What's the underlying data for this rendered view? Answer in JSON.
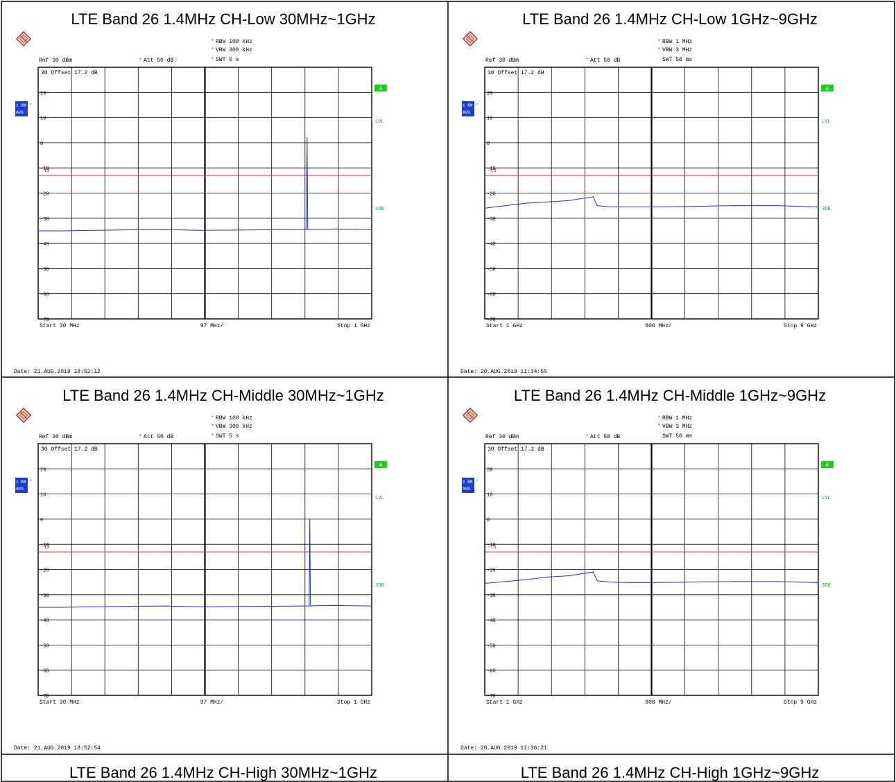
{
  "panels": [
    {
      "title": "LTE Band 26 1.4MHz CH-Low 30MHz~1GHz",
      "settings": {
        "rbw": "RBW 100 kHz",
        "vbw": "VBW 300 kHz",
        "swt": "SWT 5 s",
        "ref": "Ref  30 dBm",
        "att": "Att  50 dB",
        "offset": "30 Offset  17.2 dB"
      },
      "trace_label": [
        "1 RM",
        "AVG"
      ],
      "side_labels": [
        "A",
        "LVL",
        "3DB"
      ],
      "limit_label": "-13",
      "date": "Date: 21.AUG.2019  18:52:12",
      "footer": {
        "start": "Start  30 MHz",
        "span": "97 MHz/",
        "stop": "Stop  1 GHz"
      }
    },
    {
      "title": "LTE Band 26 1.4MHz CH-Low 1GHz~9GHz",
      "settings": {
        "rbw": "RBW 1 MHz",
        "vbw": "VBW 3 MHz",
        "swt": "SWT 50 ms",
        "ref": "Ref  30 dBm",
        "att": "Att  50 dB",
        "offset": "30 Offset  17.2 dB"
      },
      "trace_label": [
        "1 RM",
        "AVG"
      ],
      "side_labels": [
        "A",
        "LVL",
        "3DB"
      ],
      "limit_label": "-13",
      "date": "Date: 20.AUG.2019  11:34:55",
      "footer": {
        "start": "Start  1 GHz",
        "span": "800 MHz/",
        "stop": "Stop  9 GHz"
      }
    },
    {
      "title": "LTE Band 26 1.4MHz CH-Middle 30MHz~1GHz",
      "settings": {
        "rbw": "RBW 100 kHz",
        "vbw": "VBW 300 kHz",
        "swt": "SWT 5 s",
        "ref": "Ref  30 dBm",
        "att": "Att  50 dB",
        "offset": "30 Offset  17.2 dB"
      },
      "trace_label": [
        "1 RM",
        "AVG"
      ],
      "side_labels": [
        "A",
        "LVL",
        "3DB"
      ],
      "limit_label": "-13",
      "date": "Date: 21.AUG.2019  18:52:54",
      "footer": {
        "start": "Start  30 MHz",
        "span": "97 MHz/",
        "stop": "Stop  1 GHz"
      }
    },
    {
      "title": "LTE Band 26 1.4MHz CH-Middle 1GHz~9GHz",
      "settings": {
        "rbw": "RBW 1 MHz",
        "vbw": "VBW 3 MHz",
        "swt": "SWT 50 ms",
        "ref": "Ref  30 dBm",
        "att": "Att  50 dB",
        "offset": "30 Offset  17.2 dB"
      },
      "trace_label": [
        "1 RM",
        "AVG"
      ],
      "side_labels": [
        "A",
        "LVL",
        "3DB"
      ],
      "limit_label": "-13",
      "date": "Date: 20.AUG.2019  11:36:21",
      "footer": {
        "start": "Start  1 GHz",
        "span": "800 MHz/",
        "stop": "Stop  9 GHz"
      }
    },
    {
      "title": "LTE Band 26 1.4MHz CH-High 30MHz~1GHz"
    },
    {
      "title": "LTE Band 26 1.4MHz CH-High 1GHz~9GHz"
    }
  ],
  "colors": {
    "trace": "#1f2fd6",
    "limit": "#e0352b",
    "grid": "#000000",
    "badge_blue": "#1a3fd0",
    "badge_green": "#22cc22"
  },
  "chart_data": [
    {
      "type": "line",
      "title": "LTE Band 26 1.4MHz CH-Low 30MHz~1GHz",
      "x_unit": "MHz",
      "xlim": [
        30,
        1000
      ],
      "ylim": [
        -70,
        30
      ],
      "y_ticks": [
        20,
        10,
        0,
        -10,
        -20,
        -30,
        -40,
        -50,
        -60,
        -70
      ],
      "limit_line": -13,
      "series": [
        {
          "x": [
            30,
            100,
            200,
            300,
            400,
            500,
            600,
            700,
            800,
            810,
            812,
            814,
            820,
            900,
            1000
          ],
          "y": [
            -35,
            -35,
            -34.8,
            -34.6,
            -34.5,
            -34.8,
            -34.7,
            -34.6,
            -34.5,
            -34.5,
            2,
            -34.5,
            -34.4,
            -34.3,
            -34.5
          ]
        }
      ]
    },
    {
      "type": "line",
      "title": "LTE Band 26 1.4MHz CH-Low 1GHz~9GHz",
      "x_unit": "GHz",
      "xlim": [
        1,
        9
      ],
      "ylim": [
        -70,
        30
      ],
      "y_ticks": [
        20,
        10,
        0,
        -10,
        -20,
        -30,
        -40,
        -50,
        -60,
        -70
      ],
      "limit_line": -13,
      "series": [
        {
          "x": [
            1,
            1.5,
            2,
            2.5,
            3,
            3.6,
            3.7,
            4,
            4.5,
            5,
            6,
            7,
            8,
            9
          ],
          "y": [
            -26,
            -25,
            -24,
            -23.5,
            -23,
            -21.5,
            -25,
            -25.5,
            -25.5,
            -25.5,
            -25.3,
            -25,
            -25,
            -25.5
          ]
        }
      ]
    },
    {
      "type": "line",
      "title": "LTE Band 26 1.4MHz CH-Middle 30MHz~1GHz",
      "x_unit": "MHz",
      "xlim": [
        30,
        1000
      ],
      "ylim": [
        -70,
        30
      ],
      "y_ticks": [
        20,
        10,
        0,
        -10,
        -20,
        -30,
        -40,
        -50,
        -60,
        -70
      ],
      "limit_line": -13,
      "series": [
        {
          "x": [
            30,
            100,
            200,
            300,
            400,
            500,
            600,
            700,
            800,
            818,
            820,
            822,
            830,
            900,
            1000
          ],
          "y": [
            -35,
            -35,
            -34.8,
            -34.6,
            -34.5,
            -34.8,
            -34.7,
            -34.6,
            -34.5,
            -34.5,
            0,
            -34.5,
            -34.4,
            -34.3,
            -34.5
          ]
        }
      ]
    },
    {
      "type": "line",
      "title": "LTE Band 26 1.4MHz CH-Middle 1GHz~9GHz",
      "x_unit": "GHz",
      "xlim": [
        1,
        9
      ],
      "ylim": [
        -70,
        30
      ],
      "y_ticks": [
        20,
        10,
        0,
        -10,
        -20,
        -30,
        -40,
        -50,
        -60,
        -70
      ],
      "limit_line": -13,
      "series": [
        {
          "x": [
            1,
            1.5,
            2,
            2.5,
            3,
            3.6,
            3.7,
            4,
            4.5,
            5,
            6,
            7,
            8,
            9
          ],
          "y": [
            -25.5,
            -24.8,
            -24,
            -23,
            -22.5,
            -21,
            -24.5,
            -25,
            -25.2,
            -25.2,
            -25,
            -24.8,
            -24.8,
            -25.2
          ]
        }
      ]
    }
  ]
}
